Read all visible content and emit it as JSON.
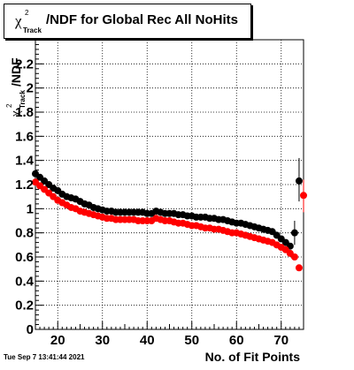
{
  "title": {
    "symbol": "χ",
    "superscript": "2",
    "subscript": "Track",
    "text": "/NDF for Global Rec All NoHits"
  },
  "y_axis_label": {
    "symbol": "χ",
    "superscript": "2",
    "subscript": "Track",
    "text": "/NDF"
  },
  "footer": {
    "timestamp": "Tue Sep  7 13:41:44 2021"
  },
  "colors": {
    "series_black": "#000000",
    "series_red": "#ff0000",
    "grid": "#000000"
  },
  "chart_data": {
    "type": "scatter",
    "title": "χ²_Track/NDF for Global Rec All NoHits",
    "xlabel": "No. of Fit Points",
    "ylabel": "χ²_Track/NDF",
    "xlim": [
      15,
      75
    ],
    "ylim": [
      0,
      2.4
    ],
    "x_ticks": [
      20,
      30,
      40,
      50,
      60,
      70
    ],
    "x_tick_labels": [
      "20",
      "30",
      "40",
      "50",
      "60",
      "70"
    ],
    "y_ticks": [
      0,
      0.2,
      0.4,
      0.6,
      0.8,
      1,
      1.2,
      1.4,
      1.6,
      1.8,
      2,
      2.2
    ],
    "y_tick_labels": [
      "0",
      "0.2",
      "0.4",
      "0.6",
      "0.8",
      "1",
      "1.2",
      "1.4",
      "1.6",
      "1.8",
      "2",
      "2.2"
    ],
    "grid": true,
    "series": [
      {
        "color": "#000000",
        "x": [
          15,
          16,
          17,
          18,
          19,
          20,
          21,
          22,
          23,
          24,
          25,
          26,
          27,
          28,
          29,
          30,
          31,
          32,
          33,
          34,
          35,
          36,
          37,
          38,
          39,
          40,
          41,
          42,
          43,
          44,
          45,
          46,
          47,
          48,
          49,
          50,
          51,
          52,
          53,
          54,
          55,
          56,
          57,
          58,
          59,
          60,
          61,
          62,
          63,
          64,
          65,
          66,
          67,
          68,
          69,
          70,
          71,
          72,
          73,
          74
        ],
        "y": [
          1.29,
          1.26,
          1.23,
          1.2,
          1.17,
          1.15,
          1.12,
          1.1,
          1.09,
          1.08,
          1.06,
          1.04,
          1.03,
          1.01,
          1.0,
          0.99,
          0.98,
          0.98,
          0.97,
          0.97,
          0.97,
          0.97,
          0.97,
          0.97,
          0.97,
          0.96,
          0.96,
          0.98,
          0.97,
          0.96,
          0.96,
          0.96,
          0.95,
          0.95,
          0.94,
          0.94,
          0.93,
          0.93,
          0.93,
          0.92,
          0.92,
          0.91,
          0.91,
          0.9,
          0.89,
          0.88,
          0.88,
          0.87,
          0.86,
          0.85,
          0.84,
          0.83,
          0.82,
          0.81,
          0.78,
          0.75,
          0.72,
          0.69,
          0.8,
          1.23
        ],
        "y_err_low": [
          0,
          0,
          0,
          0,
          0,
          0,
          0,
          0,
          0,
          0,
          0,
          0,
          0,
          0,
          0,
          0,
          0,
          0,
          0,
          0,
          0,
          0,
          0,
          0,
          0,
          0,
          0,
          0,
          0,
          0,
          0,
          0,
          0,
          0,
          0,
          0,
          0,
          0,
          0,
          0,
          0,
          0,
          0,
          0,
          0,
          0,
          0,
          0,
          0,
          0,
          0,
          0,
          0,
          0,
          0,
          0,
          0,
          0,
          0.1,
          0.17
        ],
        "y_err_high": [
          0,
          0,
          0,
          0,
          0,
          0,
          0,
          0,
          0,
          0,
          0,
          0,
          0,
          0,
          0,
          0,
          0,
          0,
          0,
          0,
          0,
          0,
          0,
          0,
          0,
          0,
          0,
          0,
          0,
          0,
          0,
          0,
          0,
          0,
          0,
          0,
          0,
          0,
          0,
          0,
          0,
          0,
          0,
          0,
          0,
          0,
          0,
          0,
          0,
          0,
          0,
          0,
          0,
          0,
          0,
          0,
          0,
          0,
          0.1,
          0.19
        ]
      },
      {
        "color": "#ff0000",
        "x": [
          15,
          16,
          17,
          18,
          19,
          20,
          21,
          22,
          23,
          24,
          25,
          26,
          27,
          28,
          29,
          30,
          31,
          32,
          33,
          34,
          35,
          36,
          37,
          38,
          39,
          40,
          41,
          42,
          43,
          44,
          45,
          46,
          47,
          48,
          49,
          50,
          51,
          52,
          53,
          54,
          55,
          56,
          57,
          58,
          59,
          60,
          61,
          62,
          63,
          64,
          65,
          66,
          67,
          68,
          69,
          70,
          71,
          72,
          73,
          74,
          75
        ],
        "y": [
          1.22,
          1.19,
          1.16,
          1.13,
          1.1,
          1.07,
          1.05,
          1.03,
          1.01,
          1.0,
          0.98,
          0.97,
          0.96,
          0.95,
          0.94,
          0.93,
          0.92,
          0.92,
          0.91,
          0.91,
          0.91,
          0.91,
          0.91,
          0.9,
          0.9,
          0.9,
          0.9,
          0.92,
          0.91,
          0.9,
          0.9,
          0.89,
          0.88,
          0.88,
          0.87,
          0.86,
          0.86,
          0.85,
          0.84,
          0.84,
          0.83,
          0.83,
          0.82,
          0.81,
          0.8,
          0.8,
          0.79,
          0.78,
          0.77,
          0.76,
          0.75,
          0.74,
          0.73,
          0.72,
          0.7,
          0.68,
          0.66,
          0.63,
          0.6,
          0.51,
          1.11
        ],
        "y_err_low": [
          0,
          0,
          0,
          0,
          0,
          0,
          0,
          0,
          0,
          0,
          0,
          0,
          0,
          0,
          0,
          0,
          0,
          0,
          0,
          0,
          0,
          0,
          0,
          0,
          0,
          0,
          0,
          0,
          0,
          0,
          0,
          0,
          0,
          0,
          0,
          0,
          0,
          0,
          0,
          0,
          0,
          0,
          0,
          0,
          0,
          0,
          0,
          0,
          0,
          0,
          0,
          0,
          0,
          0,
          0,
          0,
          0,
          0,
          0,
          0,
          0.14
        ],
        "y_err_high": [
          0,
          0,
          0,
          0,
          0,
          0,
          0,
          0,
          0,
          0,
          0,
          0,
          0,
          0,
          0,
          0,
          0,
          0,
          0,
          0,
          0,
          0,
          0,
          0,
          0,
          0,
          0,
          0,
          0,
          0,
          0,
          0,
          0,
          0,
          0,
          0,
          0,
          0,
          0,
          0,
          0,
          0,
          0,
          0,
          0,
          0,
          0,
          0,
          0,
          0,
          0,
          0,
          0,
          0,
          0,
          0,
          0,
          0,
          0,
          0,
          0.13
        ]
      }
    ]
  }
}
